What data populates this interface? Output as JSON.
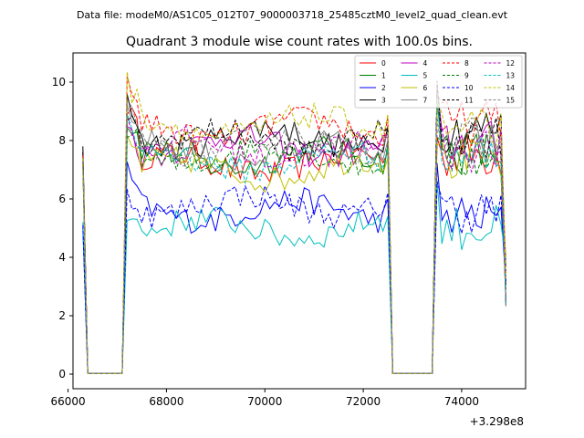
{
  "chart_data": {
    "type": "line",
    "suptitle": "Data file: modeM0/AS1C05_012T07_9000003718_25485cztM0_level2_quad_clean.evt",
    "title": "Quadrant 3 module wise count rates with 100.0s bins.",
    "xlabel": "",
    "ylabel": "",
    "x_offset_label": "+3.298e8",
    "xlim": [
      66100,
      75300
    ],
    "ylim": [
      -0.5,
      11
    ],
    "xticks": [
      66000,
      68000,
      70000,
      72000,
      74000
    ],
    "xtick_labels": [
      "66000",
      "68000",
      "70000",
      "72000",
      "74000"
    ],
    "yticks": [
      0,
      2,
      4,
      6,
      8,
      10
    ],
    "ytick_labels": [
      "0",
      "2",
      "4",
      "6",
      "8",
      "10"
    ],
    "legend_position": "top-right",
    "segments": [
      {
        "start": 66300,
        "end": 67100
      },
      {
        "start": 67100,
        "end": 72500
      },
      {
        "start": 72600,
        "end": 73400
      },
      {
        "start": 73400,
        "end": 74900
      }
    ],
    "step": 100,
    "series": [
      {
        "name": "0",
        "color": "#ff0000",
        "dash": "solid",
        "level": 7.2,
        "peak": 9.7,
        "end_level": 7.5,
        "first": 7.6
      },
      {
        "name": "1",
        "color": "#008000",
        "dash": "solid",
        "level": 7.4,
        "peak": 8.6,
        "end_level": 7.6,
        "first": 7.3
      },
      {
        "name": "2",
        "color": "#0000ff",
        "dash": "solid",
        "level": 5.6,
        "peak": 6.9,
        "end_level": 5.4,
        "first": 5.0
      },
      {
        "name": "3",
        "color": "#000000",
        "dash": "solid",
        "level": 8.1,
        "peak": 9.9,
        "end_level": 8.4,
        "first": 7.8
      },
      {
        "name": "4",
        "color": "#bf00bf",
        "dash": "solid",
        "level": 7.8,
        "peak": 9.0,
        "end_level": 7.9,
        "first": 7.3
      },
      {
        "name": "5",
        "color": "#00bfbf",
        "dash": "solid",
        "level": 5.0,
        "peak": 6.1,
        "end_level": 5.0,
        "first": 5.2
      },
      {
        "name": "6",
        "color": "#bfbf00",
        "dash": "solid",
        "level": 7.0,
        "peak": 8.3,
        "end_level": 7.3,
        "first": 7.2
      },
      {
        "name": "7",
        "color": "#808080",
        "dash": "solid",
        "level": 7.6,
        "peak": 8.8,
        "end_level": 7.8,
        "first": 7.4
      },
      {
        "name": "8",
        "color": "#ff0000",
        "dash": "dashed",
        "level": 8.4,
        "peak": 10.0,
        "end_level": 8.6,
        "first": 7.5
      },
      {
        "name": "9",
        "color": "#008000",
        "dash": "dashed",
        "level": 7.5,
        "peak": 8.7,
        "end_level": 7.4,
        "first": 7.1
      },
      {
        "name": "10",
        "color": "#0000ff",
        "dash": "dashed",
        "level": 5.8,
        "peak": 6.7,
        "end_level": 5.6,
        "first": 5.1
      },
      {
        "name": "11",
        "color": "#000000",
        "dash": "dashed",
        "level": 8.0,
        "peak": 9.3,
        "end_level": 8.2,
        "first": 7.6
      },
      {
        "name": "12",
        "color": "#bf00bf",
        "dash": "dashed",
        "level": 7.7,
        "peak": 8.9,
        "end_level": 7.7,
        "first": 7.2
      },
      {
        "name": "13",
        "color": "#00bfbf",
        "dash": "dashed",
        "level": 7.3,
        "peak": 8.5,
        "end_level": 7.5,
        "first": 7.0
      },
      {
        "name": "14",
        "color": "#bfbf00",
        "dash": "dashed",
        "level": 8.5,
        "peak": 9.9,
        "end_level": 8.3,
        "first": 7.4
      },
      {
        "name": "15",
        "color": "#808080",
        "dash": "dashed",
        "level": 7.9,
        "peak": 9.1,
        "end_level": 8.0,
        "first": 7.3
      }
    ]
  }
}
